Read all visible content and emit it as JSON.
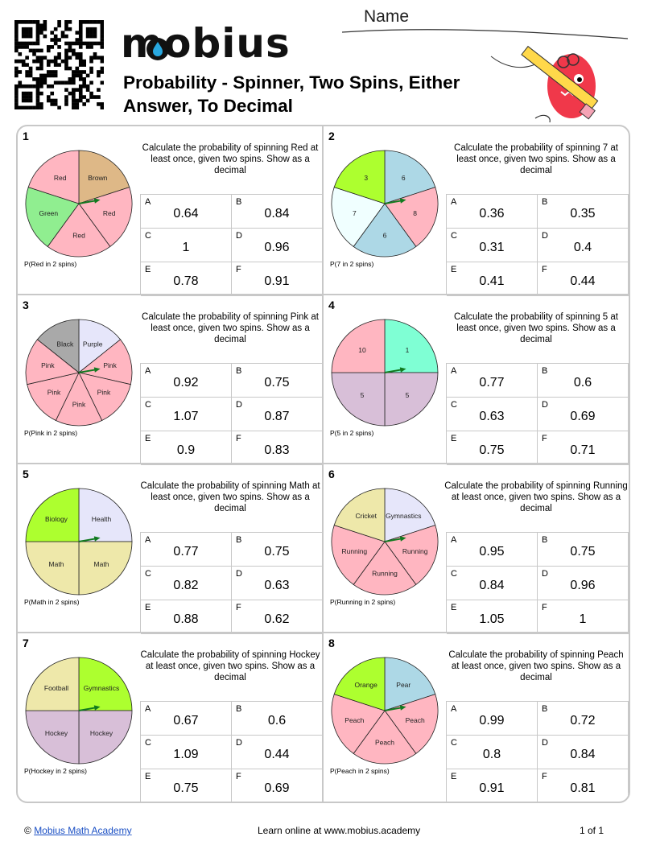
{
  "header": {
    "name_label": "Name",
    "logo_text": "mobius",
    "title": "Probability - Spinner, Two Spins, Either Answer, To Decimal",
    "qr_icon": "qr-code-icon",
    "mascot_icon": "pencil-mascot-icon"
  },
  "questions": [
    {
      "number": "1",
      "text": "Calculate the probability of spinning Red at least once, given two spins. Show as a decimal",
      "p_label": "P(Red in 2 spins)",
      "options": [
        {
          "letter": "A",
          "value": "0.64"
        },
        {
          "letter": "B",
          "value": "0.84"
        },
        {
          "letter": "C",
          "value": "1"
        },
        {
          "letter": "D",
          "value": "0.96"
        },
        {
          "letter": "E",
          "value": "0.78"
        },
        {
          "letter": "F",
          "value": "0.91"
        }
      ],
      "spinner": {
        "slices": [
          {
            "label": "Brown",
            "color": "#deb887"
          },
          {
            "label": "Red",
            "color": "#ffb6c1"
          },
          {
            "label": "Red",
            "color": "#ffb6c1"
          },
          {
            "label": "Green",
            "color": "#90ee90"
          },
          {
            "label": "Red",
            "color": "#ffb6c1"
          }
        ],
        "arrow_degrees": 10
      }
    },
    {
      "number": "2",
      "text": "Calculate the probability of spinning 7 at least once, given two spins. Show as a decimal",
      "p_label": "P(7 in 2 spins)",
      "options": [
        {
          "letter": "A",
          "value": "0.36"
        },
        {
          "letter": "B",
          "value": "0.35"
        },
        {
          "letter": "C",
          "value": "0.31"
        },
        {
          "letter": "D",
          "value": "0.4"
        },
        {
          "letter": "E",
          "value": "0.41"
        },
        {
          "letter": "F",
          "value": "0.44"
        }
      ],
      "spinner": {
        "slices": [
          {
            "label": "6",
            "color": "#add8e6"
          },
          {
            "label": "8",
            "color": "#ffb6c1"
          },
          {
            "label": "6",
            "color": "#add8e6"
          },
          {
            "label": "7",
            "color": "#f0ffff"
          },
          {
            "label": "3",
            "color": "#adff2f"
          }
        ],
        "arrow_degrees": 10
      }
    },
    {
      "number": "3",
      "text": "Calculate the probability of spinning Pink at least once, given two spins. Show as a decimal",
      "p_label": "P(Pink in 2 spins)",
      "options": [
        {
          "letter": "A",
          "value": "0.92"
        },
        {
          "letter": "B",
          "value": "0.75"
        },
        {
          "letter": "C",
          "value": "1.07"
        },
        {
          "letter": "D",
          "value": "0.87"
        },
        {
          "letter": "E",
          "value": "0.9"
        },
        {
          "letter": "F",
          "value": "0.83"
        }
      ],
      "spinner": {
        "slices": [
          {
            "label": "Purple",
            "color": "#e6e6fa"
          },
          {
            "label": "Pink",
            "color": "#ffb6c1"
          },
          {
            "label": "Pink",
            "color": "#ffb6c1"
          },
          {
            "label": "Pink",
            "color": "#ffb6c1"
          },
          {
            "label": "Pink",
            "color": "#ffb6c1"
          },
          {
            "label": "Pink",
            "color": "#ffb6c1"
          },
          {
            "label": "Black",
            "color": "#a9a9a9"
          }
        ],
        "arrow_degrees": 10
      }
    },
    {
      "number": "4",
      "text": "Calculate the probability of spinning 5 at least once, given two spins. Show as a decimal",
      "p_label": "P(5 in 2 spins)",
      "options": [
        {
          "letter": "A",
          "value": "0.77"
        },
        {
          "letter": "B",
          "value": "0.6"
        },
        {
          "letter": "C",
          "value": "0.63"
        },
        {
          "letter": "D",
          "value": "0.69"
        },
        {
          "letter": "E",
          "value": "0.75"
        },
        {
          "letter": "F",
          "value": "0.71"
        }
      ],
      "spinner": {
        "slices": [
          {
            "label": "1",
            "color": "#7fffd4"
          },
          {
            "label": "5",
            "color": "#d8bfd8"
          },
          {
            "label": "5",
            "color": "#d8bfd8"
          },
          {
            "label": "10",
            "color": "#ffb6c1"
          }
        ],
        "arrow_degrees": 10
      }
    },
    {
      "number": "5",
      "text": "Calculate the probability of spinning Math at least once, given two spins. Show as a decimal",
      "p_label": "P(Math in 2 spins)",
      "options": [
        {
          "letter": "A",
          "value": "0.77"
        },
        {
          "letter": "B",
          "value": "0.75"
        },
        {
          "letter": "C",
          "value": "0.82"
        },
        {
          "letter": "D",
          "value": "0.63"
        },
        {
          "letter": "E",
          "value": "0.88"
        },
        {
          "letter": "F",
          "value": "0.62"
        }
      ],
      "spinner": {
        "slices": [
          {
            "label": "Health",
            "color": "#e6e6fa"
          },
          {
            "label": "Math",
            "color": "#eee8aa"
          },
          {
            "label": "Math",
            "color": "#eee8aa"
          },
          {
            "label": "Biology",
            "color": "#adff2f"
          }
        ],
        "arrow_degrees": 10
      }
    },
    {
      "number": "6",
      "text": "Calculate the probability of spinning Running at least once, given two spins. Show as a decimal",
      "p_label": "P(Running in 2 spins)",
      "options": [
        {
          "letter": "A",
          "value": "0.95"
        },
        {
          "letter": "B",
          "value": "0.75"
        },
        {
          "letter": "C",
          "value": "0.84"
        },
        {
          "letter": "D",
          "value": "0.96"
        },
        {
          "letter": "E",
          "value": "1.05"
        },
        {
          "letter": "F",
          "value": "1"
        }
      ],
      "spinner": {
        "slices": [
          {
            "label": "Gymnastics",
            "color": "#e6e6fa"
          },
          {
            "label": "Running",
            "color": "#ffb6c1"
          },
          {
            "label": "Running",
            "color": "#ffb6c1"
          },
          {
            "label": "Running",
            "color": "#ffb6c1"
          },
          {
            "label": "Cricket",
            "color": "#eee8aa"
          }
        ],
        "arrow_degrees": 10
      }
    },
    {
      "number": "7",
      "text": "Calculate the probability of spinning Hockey at least once, given two spins. Show as a decimal",
      "p_label": "P(Hockey in 2 spins)",
      "options": [
        {
          "letter": "A",
          "value": "0.67"
        },
        {
          "letter": "B",
          "value": "0.6"
        },
        {
          "letter": "C",
          "value": "1.09"
        },
        {
          "letter": "D",
          "value": "0.44"
        },
        {
          "letter": "E",
          "value": "0.75"
        },
        {
          "letter": "F",
          "value": "0.69"
        }
      ],
      "spinner": {
        "slices": [
          {
            "label": "Gymnastics",
            "color": "#adff2f"
          },
          {
            "label": "Hockey",
            "color": "#d8bfd8"
          },
          {
            "label": "Hockey",
            "color": "#d8bfd8"
          },
          {
            "label": "Football",
            "color": "#eee8aa"
          }
        ],
        "arrow_degrees": 10
      }
    },
    {
      "number": "8",
      "text": "Calculate the probability of spinning Peach at least once, given two spins. Show as a decimal",
      "p_label": "P(Peach in 2 spins)",
      "options": [
        {
          "letter": "A",
          "value": "0.99"
        },
        {
          "letter": "B",
          "value": "0.72"
        },
        {
          "letter": "C",
          "value": "0.8"
        },
        {
          "letter": "D",
          "value": "0.84"
        },
        {
          "letter": "E",
          "value": "0.91"
        },
        {
          "letter": "F",
          "value": "0.81"
        }
      ],
      "spinner": {
        "slices": [
          {
            "label": "Pear",
            "color": "#add8e6"
          },
          {
            "label": "Peach",
            "color": "#ffb6c1"
          },
          {
            "label": "Peach",
            "color": "#ffb6c1"
          },
          {
            "label": "Peach",
            "color": "#ffb6c1"
          },
          {
            "label": "Orange",
            "color": "#adff2f"
          }
        ],
        "arrow_degrees": 10
      }
    }
  ],
  "footer": {
    "copyright_symbol": "©",
    "link_text": "Mobius Math Academy",
    "middle_text": "Learn online at www.mobius.academy",
    "page_text": "1 of 1"
  }
}
